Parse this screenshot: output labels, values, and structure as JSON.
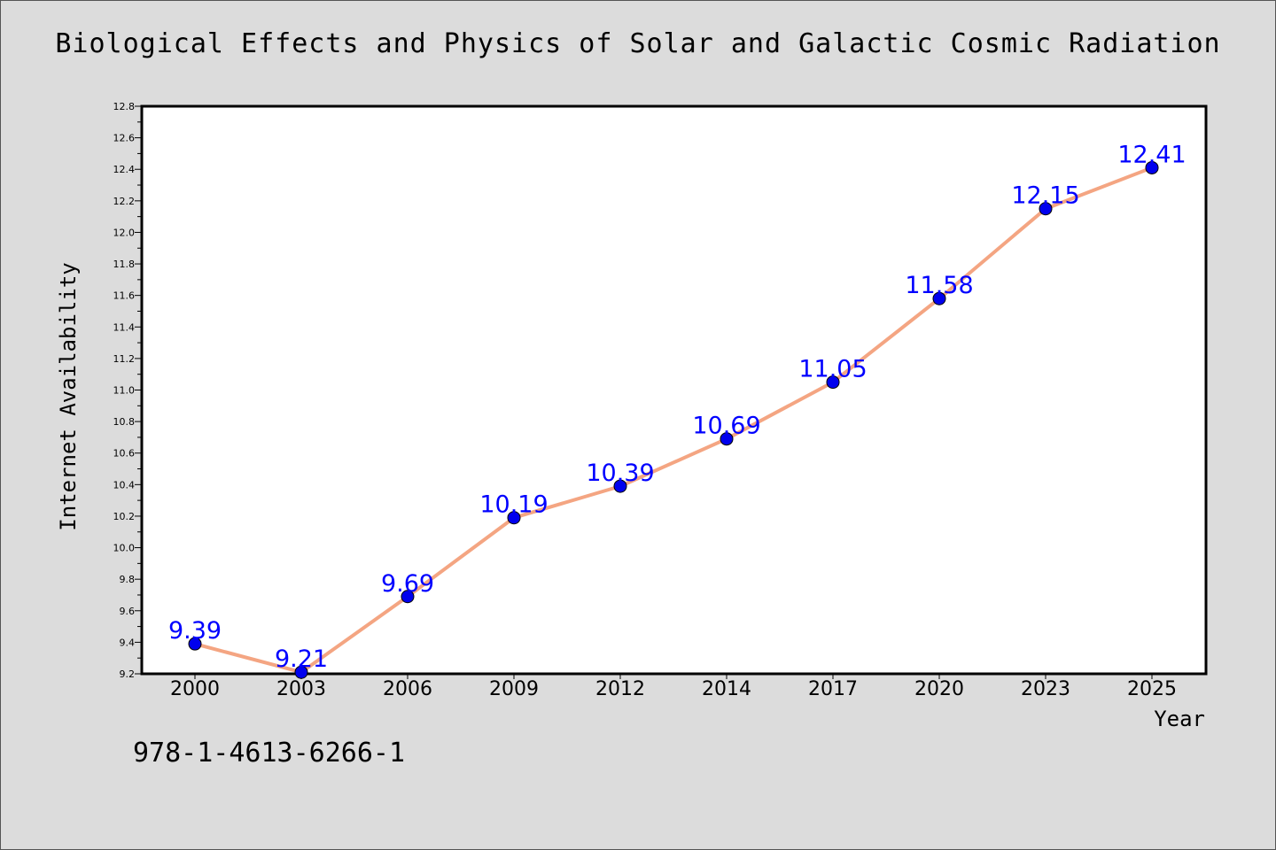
{
  "title": "Biological Effects and Physics of Solar and Galactic Cosmic Radiation",
  "footnote": "978-1-4613-6266-1",
  "chart_data": {
    "type": "line",
    "categories": [
      "2000",
      "2003",
      "2006",
      "2009",
      "2012",
      "2014",
      "2017",
      "2020",
      "2023",
      "2025"
    ],
    "values": [
      9.39,
      9.21,
      9.69,
      10.19,
      10.39,
      10.69,
      11.05,
      11.58,
      12.15,
      12.41
    ],
    "data_labels": [
      "9.39",
      "9.21",
      "9.69",
      "10.19",
      "10.39",
      "10.69",
      "11.05",
      "11.58",
      "12.15",
      "12.41"
    ],
    "xlabel": "Year",
    "ylabel": "Internet Availability",
    "ylim": [
      9.2,
      12.8
    ],
    "y_major_step": 0.2,
    "y_minor_step": 0.1,
    "yticks": [
      "9.2",
      "9.4",
      "9.6",
      "9.8",
      "10.0",
      "10.2",
      "10.4",
      "10.6",
      "10.8",
      "11.0",
      "11.2",
      "11.4",
      "11.6",
      "11.8",
      "12.0",
      "12.2",
      "12.4",
      "12.6",
      "12.8"
    ],
    "grid": false,
    "line_color": "#f4a582",
    "marker_color": "#0000ee",
    "label_color": "#0000ff"
  }
}
